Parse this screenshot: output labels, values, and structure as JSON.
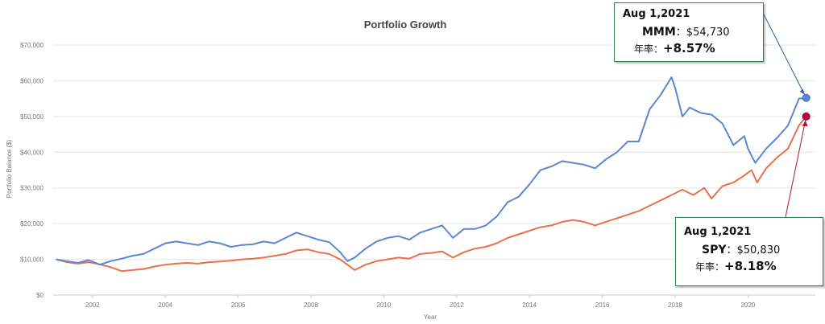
{
  "chart_data": {
    "type": "line",
    "title": "Portfolio Growth",
    "xlabel": "Year",
    "ylabel": "Portfolio Balance ($)",
    "xlim": [
      2000.92,
      2021.85
    ],
    "ylim": [
      0,
      70000
    ],
    "x_ticks": [
      "2002",
      "2004",
      "2006",
      "2008",
      "2010",
      "2012",
      "2014",
      "2016",
      "2018",
      "2020"
    ],
    "y_ticks": [
      "$0",
      "$10,000",
      "$20,000",
      "$30,000",
      "$40,000",
      "$50,000",
      "$60,000",
      "$70,000"
    ],
    "grid": "horizontal",
    "series": [
      {
        "name": "MMM",
        "color": "#5b86d4",
        "x": [
          2001.0,
          2001.3,
          2001.6,
          2001.9,
          2002.2,
          2002.5,
          2002.8,
          2003.1,
          2003.4,
          2003.7,
          2004.0,
          2004.3,
          2004.6,
          2004.9,
          2005.2,
          2005.5,
          2005.8,
          2006.1,
          2006.4,
          2006.7,
          2007.0,
          2007.3,
          2007.6,
          2007.9,
          2008.2,
          2008.5,
          2008.8,
          2009.0,
          2009.2,
          2009.5,
          2009.8,
          2010.1,
          2010.4,
          2010.7,
          2011.0,
          2011.3,
          2011.6,
          2011.9,
          2012.2,
          2012.5,
          2012.8,
          2013.1,
          2013.4,
          2013.7,
          2014.0,
          2014.3,
          2014.6,
          2014.9,
          2015.2,
          2015.5,
          2015.8,
          2016.1,
          2016.4,
          2016.7,
          2017.0,
          2017.3,
          2017.6,
          2017.9,
          2018.0,
          2018.2,
          2018.4,
          2018.7,
          2019.0,
          2019.3,
          2019.6,
          2019.9,
          2020.0,
          2020.2,
          2020.5,
          2020.8,
          2021.1,
          2021.4,
          2021.6
        ],
        "y": [
          10000,
          9500,
          9000,
          9800,
          8500,
          9500,
          10200,
          11000,
          11500,
          13000,
          14500,
          15000,
          14500,
          14000,
          15000,
          14500,
          13500,
          14000,
          14200,
          15000,
          14500,
          16000,
          17500,
          16500,
          15500,
          14800,
          12000,
          9500,
          10500,
          13000,
          15000,
          16000,
          16500,
          15500,
          17500,
          18500,
          19500,
          16000,
          18500,
          18500,
          19500,
          22000,
          26000,
          27500,
          31000,
          35000,
          36000,
          37500,
          37000,
          36500,
          35500,
          38000,
          40000,
          43000,
          43000,
          52000,
          56000,
          61000,
          58000,
          50000,
          52500,
          51000,
          50500,
          48000,
          42000,
          44500,
          41000,
          37000,
          41000,
          44000,
          47500,
          55000,
          55200
        ]
      },
      {
        "name": "SPY",
        "color": "#e8714a",
        "x": [
          2001.0,
          2001.3,
          2001.6,
          2001.9,
          2002.2,
          2002.5,
          2002.8,
          2003.1,
          2003.4,
          2003.7,
          2004.0,
          2004.3,
          2004.6,
          2004.9,
          2005.2,
          2005.5,
          2005.8,
          2006.1,
          2006.4,
          2006.7,
          2007.0,
          2007.3,
          2007.6,
          2007.9,
          2008.2,
          2008.5,
          2008.8,
          2009.0,
          2009.2,
          2009.5,
          2009.8,
          2010.1,
          2010.4,
          2010.7,
          2011.0,
          2011.3,
          2011.6,
          2011.9,
          2012.2,
          2012.5,
          2012.8,
          2013.1,
          2013.4,
          2013.7,
          2014.0,
          2014.3,
          2014.6,
          2014.9,
          2015.2,
          2015.5,
          2015.8,
          2016.1,
          2016.4,
          2016.7,
          2017.0,
          2017.3,
          2017.6,
          2017.9,
          2018.2,
          2018.5,
          2018.8,
          2019.0,
          2019.3,
          2019.6,
          2019.9,
          2020.1,
          2020.25,
          2020.5,
          2020.8,
          2021.1,
          2021.4,
          2021.6
        ],
        "y": [
          10000,
          9200,
          8800,
          9200,
          8600,
          7800,
          6700,
          7000,
          7300,
          8000,
          8500,
          8800,
          9000,
          8800,
          9200,
          9400,
          9600,
          10000,
          10200,
          10500,
          11000,
          11500,
          12500,
          12800,
          12000,
          11500,
          10000,
          8500,
          7000,
          8500,
          9500,
          10000,
          10500,
          10200,
          11500,
          11800,
          12200,
          10500,
          12000,
          13000,
          13500,
          14500,
          16000,
          17000,
          18000,
          19000,
          19500,
          20500,
          21000,
          20500,
          19500,
          20500,
          21500,
          22500,
          23500,
          25000,
          26500,
          28000,
          29500,
          28000,
          30000,
          27000,
          30500,
          31500,
          33500,
          35000,
          31500,
          35500,
          38500,
          41000,
          47500,
          50000
        ]
      }
    ],
    "annotations": [
      {
        "date": "Aug 1,2021",
        "ticker": "MMM",
        "value": "：$54,730",
        "rate_label": "年率：",
        "rate": "+8.57%"
      },
      {
        "date": "Aug 1,2021",
        "ticker": "SPY",
        "value": "：$50,830",
        "rate_label": "年率：",
        "rate": "+8.18%"
      }
    ]
  }
}
